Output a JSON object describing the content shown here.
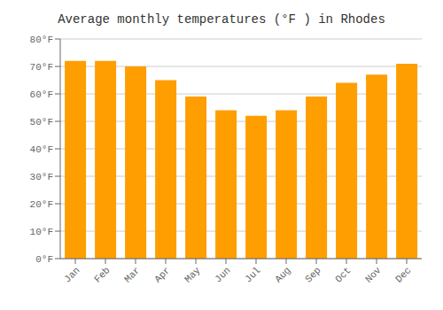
{
  "chart_data": {
    "type": "bar",
    "title": "Average monthly temperatures (°F ) in Rhodes",
    "categories": [
      "Jan",
      "Feb",
      "Mar",
      "Apr",
      "May",
      "Jun",
      "Jul",
      "Aug",
      "Sep",
      "Oct",
      "Nov",
      "Dec"
    ],
    "values": [
      72,
      72,
      70,
      65,
      59,
      54,
      52,
      54,
      59,
      64,
      67,
      71
    ],
    "color": "#FF9E00",
    "ylim": [
      0,
      80
    ],
    "yticks": [
      {
        "value": 0,
        "label": "0°F"
      },
      {
        "value": 10,
        "label": "10°F"
      },
      {
        "value": 20,
        "label": "20°F"
      },
      {
        "value": 30,
        "label": "30°F"
      },
      {
        "value": 40,
        "label": "40°F"
      },
      {
        "value": 50,
        "label": "50°F"
      },
      {
        "value": 60,
        "label": "60°F"
      },
      {
        "value": 70,
        "label": "70°F"
      },
      {
        "value": 80,
        "label": "80°F"
      }
    ],
    "grid": true
  }
}
